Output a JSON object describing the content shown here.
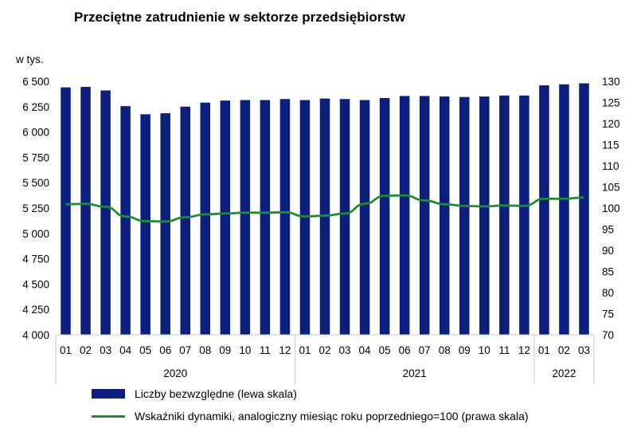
{
  "colors": {
    "bar": "#0c1f7a",
    "line": "#1f8a3a",
    "grid": "#c8c8c8"
  },
  "chart_data": {
    "type": "bar",
    "title": "Przeciętne zatrudnienie w sektorze przedsiębiorstw",
    "ylabel": "w tys.",
    "ylim": [
      4000,
      6500
    ],
    "y_ticks": [
      "6 500",
      "6 250",
      "6 000",
      "5 750",
      "5 500",
      "5 250",
      "5 000",
      "4 750",
      "4 500",
      "4 250",
      "4 000"
    ],
    "y2lim": [
      70,
      130
    ],
    "y2_ticks": [
      "130",
      "125",
      "120",
      "115",
      "110",
      "105",
      "100",
      "95",
      "90",
      "85",
      "80",
      "75",
      "70"
    ],
    "categories": [
      "01",
      "02",
      "03",
      "04",
      "05",
      "06",
      "07",
      "08",
      "09",
      "10",
      "11",
      "12",
      "01",
      "02",
      "03",
      "04",
      "05",
      "06",
      "07",
      "08",
      "09",
      "10",
      "11",
      "12",
      "01",
      "02",
      "03"
    ],
    "year_groups": [
      {
        "label": "2020",
        "count": 12
      },
      {
        "label": "2021",
        "count": 12
      },
      {
        "label": "2022",
        "count": 3
      }
    ],
    "series": [
      {
        "name": "Liczby bezwzględne (lewa skala)",
        "type": "bar",
        "axis": "left",
        "values": [
          6440,
          6445,
          6410,
          6255,
          6175,
          6185,
          6250,
          6290,
          6310,
          6315,
          6315,
          6325,
          6315,
          6330,
          6325,
          6315,
          6335,
          6355,
          6355,
          6350,
          6345,
          6350,
          6360,
          6360,
          6460,
          6470,
          6480
        ]
      },
      {
        "name": "Wskaźniki dynamiki, analogiczny miesiąc roku poprzedniego=100 (prawa skala)",
        "type": "line",
        "axis": "right",
        "values": [
          100.9,
          101.0,
          100.3,
          98.0,
          96.9,
          96.8,
          97.8,
          98.5,
          98.7,
          98.9,
          98.9,
          99.0,
          98.0,
          98.2,
          98.7,
          101.0,
          102.9,
          103.0,
          101.8,
          100.9,
          100.5,
          100.4,
          100.6,
          100.5,
          102.2,
          102.2,
          102.5
        ]
      }
    ],
    "legend_position": "bottom",
    "grid": false
  }
}
